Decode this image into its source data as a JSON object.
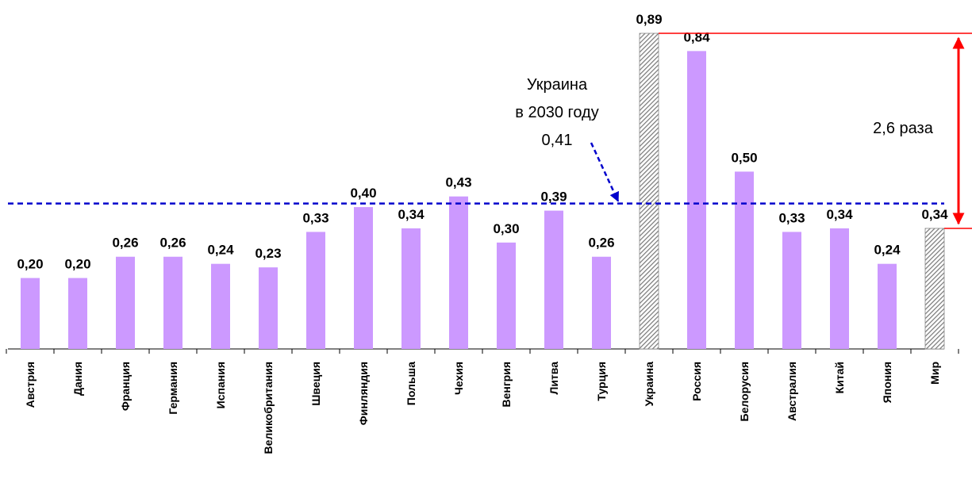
{
  "chart_data": {
    "type": "bar",
    "categories": [
      "Австрия",
      "Дания",
      "Франция",
      "Германия",
      "Испания",
      "Великобритания",
      "Швеция",
      "Финляндия",
      "Польша",
      "Чехия",
      "Венгрия",
      "Литва",
      "Турция",
      "Украина",
      "Россия",
      "Белорусия",
      "Австралия",
      "Китай",
      "Япония",
      "Мир"
    ],
    "values": [
      0.2,
      0.2,
      0.26,
      0.26,
      0.24,
      0.23,
      0.33,
      0.4,
      0.34,
      0.43,
      0.3,
      0.39,
      0.26,
      0.89,
      0.84,
      0.5,
      0.33,
      0.34,
      0.24,
      0.34
    ],
    "value_labels": [
      "0,20",
      "0,20",
      "0,26",
      "0,26",
      "0,24",
      "0,23",
      "0,33",
      "0,40",
      "0,34",
      "0,43",
      "0,30",
      "0,39",
      "0,26",
      "0,89",
      "0,84",
      "0,50",
      "0,33",
      "0,34",
      "0,24",
      "0,34"
    ],
    "highlighted": [
      "Украина",
      "Мир"
    ],
    "ylim": [
      0,
      0.89
    ],
    "grid": false,
    "colors": {
      "bar": "#cc99ff",
      "highlight": "#999999",
      "reference_line": "#0000cc",
      "ratio_arrow": "#ff0000"
    },
    "reference_line": {
      "value": 0.41,
      "label_lines": [
        "Украина",
        "в 2030 году",
        "0,41"
      ]
    },
    "ratio_annotation": {
      "label": "2,6 раза",
      "from_value": 0.89,
      "to_value": 0.34
    }
  }
}
